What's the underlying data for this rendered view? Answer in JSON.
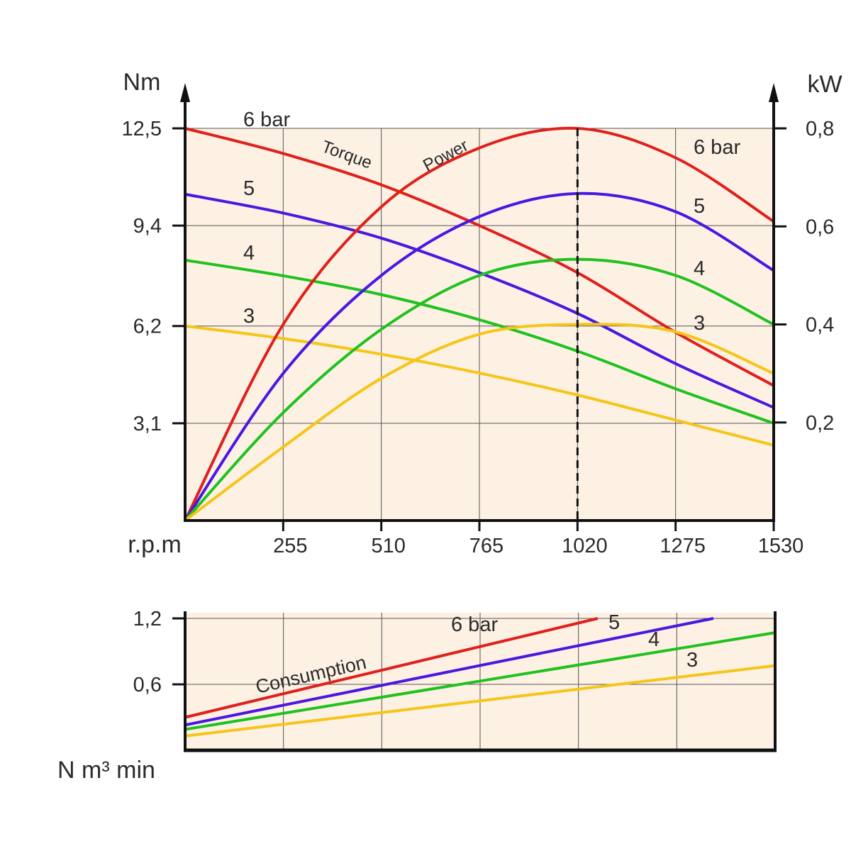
{
  "chart_data": [
    {
      "type": "line",
      "xlabel": "r.p.m",
      "ylabel_left": "Nm",
      "ylabel_right": "kW",
      "x_ticks": [
        255,
        510,
        765,
        1020,
        1275,
        1530
      ],
      "x_tick_labels": [
        "255",
        "510",
        "765",
        "1020",
        "1275",
        "1530"
      ],
      "xlim": [
        0,
        1530
      ],
      "ylim_left": [
        0,
        12.5
      ],
      "y_ticks_left": [
        3.1,
        6.2,
        9.4,
        12.5
      ],
      "y_tick_labels_left": [
        "3,1",
        "6,2",
        "9,4",
        "12,5"
      ],
      "ylim_right": [
        0,
        0.8
      ],
      "y_ticks_right": [
        0.2,
        0.4,
        0.6,
        0.8
      ],
      "y_tick_labels_right": [
        "0,2",
        "0,4",
        "0,6",
        "0,8"
      ],
      "grid": true,
      "background": "#fdf1e4",
      "max_power_rpm": 1020,
      "annotations": [
        "Torque",
        "Power"
      ],
      "torque_series": [
        {
          "name": "6 bar",
          "color": "#e0201c",
          "x": [
            0,
            255,
            510,
            765,
            1020,
            1275,
            1530
          ],
          "y": [
            12.5,
            11.7,
            10.7,
            9.4,
            7.9,
            6.0,
            4.3
          ]
        },
        {
          "name": "5",
          "color": "#4a18e0",
          "x": [
            0,
            255,
            510,
            765,
            1020,
            1275,
            1530
          ],
          "y": [
            10.4,
            9.8,
            9.0,
            7.9,
            6.6,
            5.0,
            3.6
          ]
        },
        {
          "name": "4",
          "color": "#1fc21f",
          "x": [
            0,
            255,
            510,
            765,
            1020,
            1275,
            1530
          ],
          "y": [
            8.3,
            7.8,
            7.2,
            6.4,
            5.4,
            4.2,
            3.1
          ]
        },
        {
          "name": "3",
          "color": "#f5c518",
          "x": [
            0,
            255,
            510,
            765,
            1020,
            1275,
            1530
          ],
          "y": [
            6.2,
            5.8,
            5.3,
            4.7,
            4.0,
            3.2,
            2.4
          ]
        }
      ],
      "power_series": [
        {
          "name": "6 bar",
          "color": "#e0201c",
          "x": [
            0,
            255,
            510,
            765,
            1020,
            1275,
            1530
          ],
          "y": [
            0,
            0.4,
            0.64,
            0.76,
            0.8,
            0.74,
            0.61
          ]
        },
        {
          "name": "5",
          "color": "#4a18e0",
          "x": [
            0,
            255,
            510,
            765,
            1020,
            1275,
            1530
          ],
          "y": [
            0,
            0.3,
            0.5,
            0.62,
            0.667,
            0.63,
            0.51
          ]
        },
        {
          "name": "4",
          "color": "#1fc21f",
          "x": [
            0,
            255,
            510,
            765,
            1020,
            1275,
            1530
          ],
          "y": [
            0,
            0.22,
            0.39,
            0.5,
            0.533,
            0.5,
            0.4
          ]
        },
        {
          "name": "3",
          "color": "#f5c518",
          "x": [
            0,
            255,
            510,
            765,
            1020,
            1275,
            1530
          ],
          "y": [
            0,
            0.15,
            0.29,
            0.38,
            0.4,
            0.385,
            0.3
          ]
        }
      ],
      "curve_labels_left": [
        "6 bar",
        "5",
        "4",
        "3"
      ],
      "curve_labels_right": [
        "6 bar",
        "5",
        "4",
        "3"
      ]
    },
    {
      "type": "line",
      "ylabel": "N m³ min",
      "xlim": [
        0,
        1530
      ],
      "ylim": [
        0,
        1.2
      ],
      "y_ticks": [
        0.6,
        1.2
      ],
      "y_tick_labels": [
        "0,6",
        "1,2"
      ],
      "grid": true,
      "annotations": [
        "Consumption"
      ],
      "series": [
        {
          "name": "6 bar",
          "color": "#e0201c",
          "x": [
            0,
            1070
          ],
          "y": [
            0.3,
            1.2
          ]
        },
        {
          "name": "5",
          "color": "#4a18e0",
          "x": [
            0,
            1370
          ],
          "y": [
            0.23,
            1.2
          ]
        },
        {
          "name": "4",
          "color": "#1fc21f",
          "x": [
            0,
            1530
          ],
          "y": [
            0.19,
            1.07
          ]
        },
        {
          "name": "3",
          "color": "#f5c518",
          "x": [
            0,
            1530
          ],
          "y": [
            0.13,
            0.77
          ]
        }
      ]
    }
  ]
}
